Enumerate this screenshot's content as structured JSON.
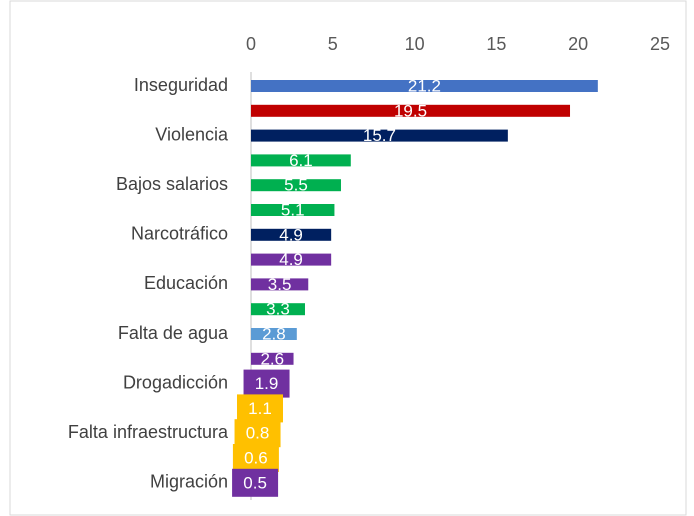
{
  "chart_data": {
    "type": "barh",
    "categories": [
      "Inseguridad",
      null,
      "Violencia",
      null,
      "Bajos salarios",
      null,
      "Narcotráfico",
      null,
      "Educación",
      null,
      "Falta de agua",
      null,
      "Drogadicción",
      null,
      "Falta infraestructura",
      null,
      "Migración"
    ],
    "values": [
      21.2,
      19.5,
      15.7,
      6.1,
      5.5,
      5.1,
      4.9,
      4.9,
      3.5,
      3.3,
      2.8,
      2.6,
      1.9,
      1.1,
      0.8,
      0.6,
      0.5
    ],
    "colors": [
      "#4472c4",
      "#c00000",
      "#002060",
      "#00b050",
      "#00b050",
      "#00b050",
      "#002060",
      "#7030a0",
      "#7030a0",
      "#00b050",
      "#5b9bd5",
      "#7030a0",
      "#7030a0",
      "#ffc000",
      "#ffc000",
      "#ffc000",
      "#7030a0"
    ],
    "xlim": [
      0,
      25
    ],
    "xticks": [
      0,
      5,
      10,
      15,
      20,
      25
    ],
    "grid": false
  }
}
